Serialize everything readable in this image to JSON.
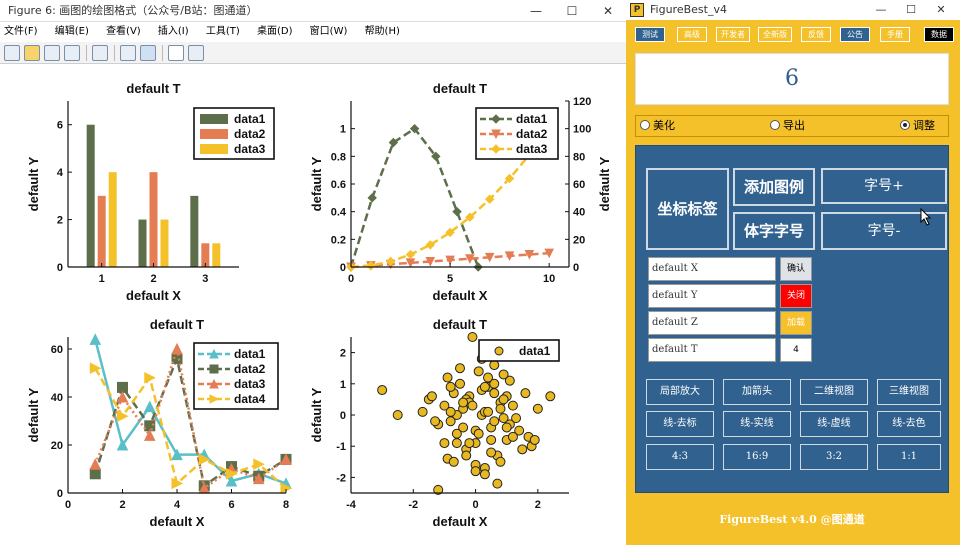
{
  "figure_window": {
    "title": "Figure 6: 画图的绘图格式（公众号/B站：图通道）",
    "controls": [
      "—",
      "☐",
      "✕"
    ],
    "menu": [
      "文件(F)",
      "编辑(E)",
      "查看(V)",
      "插入(I)",
      "工具(T)",
      "桌面(D)",
      "窗口(W)",
      "帮助(H)"
    ]
  },
  "chart_data": [
    {
      "type": "bar",
      "title": "default T",
      "xlabel": "default X",
      "ylabel": "default Y",
      "categories": [
        "1",
        "2",
        "3"
      ],
      "xticks": [
        "1",
        "2",
        "3"
      ],
      "yticks": [
        "0",
        "2",
        "4",
        "6"
      ],
      "ylim": [
        0,
        7
      ],
      "series": [
        {
          "name": "data1",
          "color": "#5c6e4a",
          "values": [
            6,
            2,
            3
          ]
        },
        {
          "name": "data2",
          "color": "#e47d54",
          "values": [
            3,
            4,
            1
          ]
        },
        {
          "name": "data3",
          "color": "#f5c12b",
          "values": [
            4,
            2,
            1
          ]
        }
      ],
      "legend": "top-right",
      "grid": false
    },
    {
      "type": "line",
      "title": "default T",
      "xlabel": "default X",
      "ylabel": "default Y",
      "xlim": [
        0,
        11
      ],
      "ylim": [
        0,
        1.2
      ],
      "ylim_right": [
        0,
        120
      ],
      "xticks": [
        "0",
        "5",
        "10"
      ],
      "yticks": [
        "0",
        "0.2",
        "0.4",
        "0.6",
        "0.8",
        "1"
      ],
      "yticks_right": [
        "0",
        "20",
        "40",
        "60",
        "80",
        "100",
        "120"
      ],
      "series": [
        {
          "name": "data1",
          "color": "#5c6e4a",
          "marker": "diamond",
          "axis": "left",
          "x": [
            0,
            1.07,
            2.14,
            3.21,
            4.28,
            5.35,
            6.42
          ],
          "y": [
            0,
            0.5,
            0.9,
            1.0,
            0.8,
            0.4,
            0
          ]
        },
        {
          "name": "data2",
          "color": "#e47d54",
          "marker": "triangle-down",
          "axis": "left",
          "x": [
            0,
            1,
            2,
            3,
            4,
            5,
            6,
            7,
            8,
            9,
            10
          ],
          "y": [
            0,
            0.01,
            0.02,
            0.03,
            0.04,
            0.05,
            0.06,
            0.07,
            0.08,
            0.09,
            0.1
          ]
        },
        {
          "name": "data3",
          "color": "#f5c12b",
          "marker": "diamond",
          "axis": "right",
          "x": [
            0,
            1,
            2,
            3,
            4,
            5,
            6,
            7,
            8,
            9,
            10
          ],
          "y": [
            0,
            1,
            4,
            9,
            16,
            25,
            36,
            49,
            64,
            81,
            100
          ]
        }
      ],
      "legend": "top-right",
      "grid": false
    },
    {
      "type": "line",
      "title": "default T",
      "xlabel": "default X",
      "ylabel": "default Y",
      "xlim": [
        0,
        8
      ],
      "ylim": [
        0,
        65
      ],
      "xticks": [
        "0",
        "2",
        "4",
        "6",
        "8"
      ],
      "yticks": [
        "0",
        "20",
        "40",
        "60"
      ],
      "series": [
        {
          "name": "data1",
          "color": "#5bbfc9",
          "marker": "triangle-up",
          "x": [
            1,
            2,
            3,
            4,
            5,
            6,
            7,
            8
          ],
          "y": [
            64,
            20,
            36,
            16,
            16,
            5,
            8,
            4
          ]
        },
        {
          "name": "data2",
          "color": "#5c6e4a",
          "marker": "square",
          "x": [
            1,
            2,
            3,
            4,
            5,
            6,
            7,
            8
          ],
          "y": [
            8,
            44,
            28,
            56,
            3,
            11,
            7,
            14
          ]
        },
        {
          "name": "data3",
          "color": "#e47d54",
          "marker": "triangle-up",
          "x": [
            1,
            2,
            3,
            4,
            5,
            6,
            7,
            8
          ],
          "y": [
            12,
            40,
            24,
            60,
            2,
            10,
            6,
            14
          ]
        },
        {
          "name": "data4",
          "color": "#f5c12b",
          "marker": "triangle-right",
          "x": [
            1,
            2,
            3,
            4,
            5,
            6,
            7,
            8
          ],
          "y": [
            52,
            32,
            48,
            4,
            14,
            8,
            12,
            2
          ]
        }
      ],
      "legend": "top-right",
      "grid": false
    },
    {
      "type": "scatter",
      "title": "default T",
      "xlabel": "default X",
      "ylabel": "default Y",
      "xlim": [
        -4,
        3
      ],
      "ylim": [
        -2.5,
        2.5
      ],
      "xticks": [
        "-4",
        "-2",
        "0",
        "2"
      ],
      "yticks": [
        "-2",
        "-1",
        "0",
        "1",
        "2"
      ],
      "series": [
        {
          "name": "data1",
          "color": "#e8b820",
          "marker": "circle",
          "x": [
            -3.0,
            -2.5,
            -1.5,
            -1.7,
            -1.2,
            -1.0,
            -0.9,
            -0.8,
            -0.7,
            -0.6,
            -0.5,
            -0.4,
            -0.3,
            -0.2,
            -0.1,
            0.0,
            0.1,
            0.2,
            0.3,
            0.4,
            0.5,
            0.6,
            0.7,
            0.8,
            0.9,
            1.0,
            1.1,
            1.2,
            1.4,
            1.6,
            1.8,
            2.0,
            2.4,
            -1.2,
            -0.9,
            -0.6,
            -0.3,
            0.0,
            0.3,
            0.6,
            0.9,
            1.2,
            -0.8,
            -0.4,
            0.2,
            0.5,
            0.8,
            1.1,
            -1.0,
            -0.5,
            0.0,
            0.4,
            0.7,
            1.0,
            -0.7,
            -0.2,
            0.3,
            0.6,
            1.5,
            -1.3,
            -0.1,
            0.1,
            0.9,
            -0.6,
            0.5,
            1.3,
            0.2,
            -0.3,
            0.6,
            1.7,
            -1.4,
            0.0,
            0.4,
            1.0,
            -0.8,
            -0.2,
            0.8,
            0.3,
            1.9,
            -0.4
          ],
          "y": [
            0.8,
            0.0,
            0.5,
            0.1,
            -2.4,
            0.3,
            1.2,
            -0.2,
            0.7,
            -0.6,
            1.0,
            0.2,
            -1.1,
            0.6,
            2.5,
            -0.9,
            1.4,
            0.0,
            -1.7,
            0.9,
            -0.4,
            1.6,
            -1.3,
            0.4,
            -0.1,
            -0.8,
            1.1,
            0.3,
            -0.5,
            0.7,
            -1.0,
            0.2,
            0.6,
            -0.3,
            -1.4,
            -0.9,
            0.5,
            -1.6,
            0.1,
            -0.2,
            1.3,
            -0.7,
            0.9,
            -0.4,
            0.8,
            -1.2,
            0.2,
            -0.3,
            -0.9,
            1.5,
            -0.5,
            0.1,
            -2.2,
            0.6,
            -1.5,
            0.4,
            -1.9,
            1.0,
            -1.1,
            -0.2,
            0.3,
            -0.6,
            0.5,
            0.0,
            -0.8,
            -0.1,
            1.8,
            -1.3,
            0.7,
            -0.7,
            0.6,
            -1.8,
            1.2,
            -0.4,
            0.1,
            -0.9,
            -1.5,
            0.9,
            -0.8,
            0.4
          ]
        }
      ],
      "legend": "top-right",
      "grid": false
    }
  ],
  "figurebest": {
    "title": "FigureBest_v4",
    "logo": "P",
    "controls": [
      "—",
      "☐",
      "✕"
    ],
    "top_buttons": [
      {
        "label": "测试",
        "bg": "#31628f"
      },
      {
        "label": "高级",
        "bg": "#f5c12b"
      },
      {
        "label": "开发者",
        "bg": "#f5c12b"
      },
      {
        "label": "全新版",
        "bg": "#f5c12b"
      },
      {
        "label": "反馈",
        "bg": "#f5c12b"
      },
      {
        "label": "公告",
        "bg": "#31628f"
      },
      {
        "label": "手册",
        "bg": "#f5c12b"
      },
      {
        "label": "数据",
        "bg": "#000000"
      }
    ],
    "display_number": "6",
    "radio": [
      {
        "label": "美化",
        "checked": false
      },
      {
        "label": "导出",
        "checked": false
      },
      {
        "label": "调整",
        "checked": true
      }
    ],
    "big_buttons": {
      "axis_labels": "坐标标签",
      "add_legend": "添加图例",
      "font_size_up": "字号+",
      "font_and_size": "体字字号",
      "font_size_down": "字号-"
    },
    "fields": [
      {
        "value": "default X",
        "button": "确认",
        "bg": "#dfe3e8",
        "color": "#000"
      },
      {
        "value": "default Y",
        "button": "关闭",
        "bg": "#ff0000",
        "color": "#fff"
      },
      {
        "value": "default Z",
        "button": "加载",
        "bg": "#f5c12b",
        "color": "#fff"
      },
      {
        "value": "default T",
        "button": "4",
        "bg": "#ffffff",
        "color": "#000"
      }
    ],
    "grid_buttons": [
      [
        "局部放大",
        "加箭头",
        "二维视图",
        "三维视图"
      ],
      [
        "线-去标",
        "线-实线",
        "线-虚线",
        "线-去色"
      ],
      [
        "4:3",
        "16:9",
        "3:2",
        "1:1"
      ]
    ],
    "footer": "FigureBest v4.0 @图通道"
  }
}
